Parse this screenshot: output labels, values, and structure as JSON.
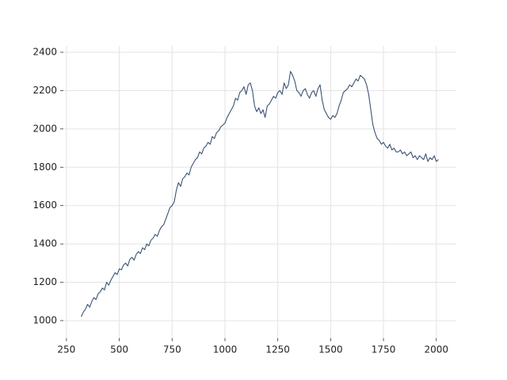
{
  "chart_data": {
    "type": "line",
    "x": [
      320,
      330,
      340,
      350,
      360,
      370,
      380,
      390,
      400,
      410,
      420,
      430,
      440,
      450,
      460,
      470,
      480,
      490,
      500,
      510,
      520,
      530,
      540,
      550,
      560,
      570,
      580,
      590,
      600,
      610,
      620,
      630,
      640,
      650,
      660,
      670,
      680,
      690,
      700,
      710,
      720,
      730,
      740,
      750,
      760,
      770,
      780,
      790,
      800,
      810,
      820,
      830,
      840,
      850,
      860,
      870,
      880,
      890,
      900,
      910,
      920,
      930,
      940,
      950,
      960,
      970,
      980,
      990,
      1000,
      1010,
      1020,
      1030,
      1040,
      1050,
      1060,
      1070,
      1080,
      1090,
      1100,
      1110,
      1120,
      1130,
      1140,
      1150,
      1160,
      1170,
      1180,
      1190,
      1200,
      1210,
      1220,
      1230,
      1240,
      1250,
      1260,
      1270,
      1280,
      1290,
      1300,
      1310,
      1320,
      1330,
      1340,
      1350,
      1360,
      1370,
      1380,
      1390,
      1400,
      1410,
      1420,
      1430,
      1440,
      1450,
      1460,
      1470,
      1480,
      1490,
      1500,
      1510,
      1520,
      1530,
      1540,
      1550,
      1560,
      1570,
      1580,
      1590,
      1600,
      1610,
      1620,
      1630,
      1640,
      1650,
      1660,
      1670,
      1680,
      1690,
      1700,
      1710,
      1720,
      1730,
      1740,
      1750,
      1760,
      1770,
      1780,
      1790,
      1800,
      1810,
      1820,
      1830,
      1840,
      1850,
      1860,
      1870,
      1880,
      1890,
      1900,
      1910,
      1920,
      1930,
      1940,
      1950,
      1960,
      1970,
      1980,
      1990,
      2000,
      2010
    ],
    "series": [
      {
        "color": "#3b5373",
        "values": [
          1020,
          1045,
          1060,
          1085,
          1070,
          1100,
          1120,
          1110,
          1140,
          1150,
          1170,
          1160,
          1200,
          1185,
          1210,
          1230,
          1250,
          1240,
          1270,
          1265,
          1290,
          1300,
          1285,
          1320,
          1330,
          1315,
          1345,
          1360,
          1350,
          1380,
          1370,
          1400,
          1390,
          1420,
          1430,
          1450,
          1440,
          1470,
          1490,
          1500,
          1530,
          1560,
          1590,
          1600,
          1620,
          1680,
          1720,
          1700,
          1740,
          1750,
          1770,
          1760,
          1800,
          1820,
          1840,
          1850,
          1880,
          1870,
          1900,
          1910,
          1930,
          1920,
          1960,
          1950,
          1980,
          1990,
          2010,
          2020,
          2030,
          2060,
          2080,
          2100,
          2120,
          2160,
          2150,
          2190,
          2200,
          2220,
          2180,
          2230,
          2240,
          2200,
          2120,
          2090,
          2110,
          2080,
          2100,
          2060,
          2120,
          2130,
          2150,
          2170,
          2160,
          2190,
          2200,
          2180,
          2240,
          2210,
          2230,
          2300,
          2280,
          2250,
          2200,
          2190,
          2170,
          2200,
          2210,
          2180,
          2160,
          2190,
          2200,
          2170,
          2210,
          2230,
          2150,
          2100,
          2080,
          2060,
          2050,
          2070,
          2060,
          2080,
          2120,
          2150,
          2190,
          2200,
          2210,
          2230,
          2220,
          2240,
          2260,
          2250,
          2280,
          2270,
          2260,
          2230,
          2180,
          2100,
          2020,
          1980,
          1950,
          1940,
          1920,
          1930,
          1910,
          1900,
          1920,
          1890,
          1900,
          1880,
          1880,
          1890,
          1870,
          1880,
          1860,
          1870,
          1880,
          1850,
          1860,
          1840,
          1860,
          1850,
          1840,
          1870,
          1830,
          1850,
          1840,
          1860,
          1830,
          1840
        ]
      }
    ],
    "xlim": [
      235.5,
      2094.5
    ],
    "ylim": [
      909,
      2433
    ],
    "xticks": [
      250,
      500,
      750,
      1000,
      1250,
      1500,
      1750,
      2000
    ],
    "yticks": [
      1000,
      1200,
      1400,
      1600,
      1800,
      2000,
      2200,
      2400
    ],
    "grid": true
  }
}
